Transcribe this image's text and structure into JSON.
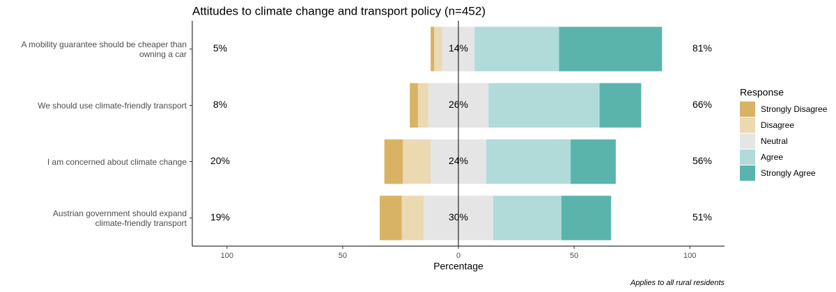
{
  "chart_data": {
    "type": "diverging_bar",
    "title": "Attitudes to climate change and transport policy (n=452)",
    "x_label": "Percentage",
    "caption": "Applies to all rural residents",
    "legend_title": "Response",
    "categories": [
      "A mobility guarantee should be cheaper than\nowning a car",
      "We should use climate-friendly transport",
      "I am concerned about climate change",
      "Austrian government should expand\nclimate-friendly transport"
    ],
    "series": [
      {
        "name": "Strongly Disagree",
        "color": "#d8b365",
        "values": [
          1.5,
          3.5,
          8,
          9.5
        ]
      },
      {
        "name": "Disagree",
        "color": "#ebd9b2",
        "values": [
          3.5,
          4.5,
          12,
          9.5
        ]
      },
      {
        "name": "Neutral",
        "color": "#e5e5e5",
        "values": [
          14,
          26,
          24,
          30
        ],
        "value_labels": [
          "14%",
          "26%",
          "24%",
          "30%"
        ]
      },
      {
        "name": "Agree",
        "color": "#b0dbd8",
        "values": [
          36.5,
          48,
          36.5,
          29.5
        ]
      },
      {
        "name": "Strongly Agree",
        "color": "#5ab4ac",
        "values": [
          44.5,
          18,
          19.5,
          21.5
        ]
      }
    ],
    "left_totals": {
      "values": [
        5,
        8,
        20,
        19
      ],
      "value_labels": [
        "5%",
        "8%",
        "20%",
        "19%"
      ]
    },
    "right_totals": {
      "values": [
        81,
        66,
        56,
        51
      ],
      "value_labels": [
        "81%",
        "66%",
        "56%",
        "51%"
      ]
    },
    "xlim": [
      -115,
      115
    ],
    "xticks": [
      {
        "value": -100,
        "label": "100"
      },
      {
        "value": -50,
        "label": "50"
      },
      0,
      50,
      100
    ]
  }
}
